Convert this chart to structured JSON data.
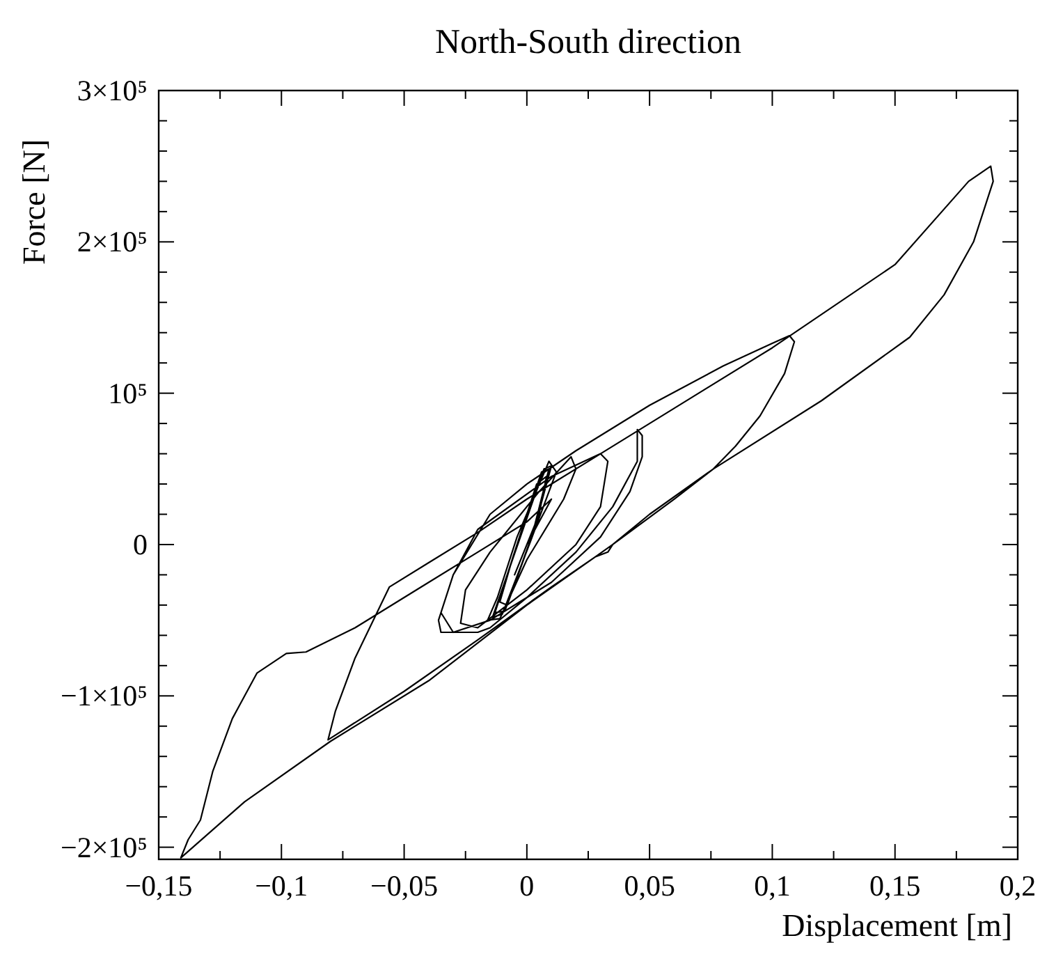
{
  "chart_data": {
    "type": "line",
    "title": "North-South direction",
    "xlabel": "Displacement [m]",
    "ylabel": "Force [N]",
    "xlim": [
      -0.15,
      0.2
    ],
    "ylim": [
      -208000,
      300000
    ],
    "xticks": [
      {
        "value": -0.15,
        "label": "−0,15"
      },
      {
        "value": -0.125,
        "label": null
      },
      {
        "value": -0.1,
        "label": "−0,1"
      },
      {
        "value": -0.075,
        "label": null
      },
      {
        "value": -0.05,
        "label": "−0,05"
      },
      {
        "value": -0.025,
        "label": null
      },
      {
        "value": 0,
        "label": "0"
      },
      {
        "value": 0.025,
        "label": null
      },
      {
        "value": 0.05,
        "label": "0,05"
      },
      {
        "value": 0.075,
        "label": null
      },
      {
        "value": 0.1,
        "label": "0,1"
      },
      {
        "value": 0.125,
        "label": null
      },
      {
        "value": 0.15,
        "label": "0,15"
      },
      {
        "value": 0.175,
        "label": null
      },
      {
        "value": 0.2,
        "label": "0,2"
      }
    ],
    "yticks": [
      {
        "value": -200000,
        "label": "−2×10⁵"
      },
      {
        "value": -180000,
        "label": null
      },
      {
        "value": -160000,
        "label": null
      },
      {
        "value": -140000,
        "label": null
      },
      {
        "value": -120000,
        "label": null
      },
      {
        "value": -100000,
        "label": "−1×10⁵"
      },
      {
        "value": -80000,
        "label": null
      },
      {
        "value": -60000,
        "label": null
      },
      {
        "value": -40000,
        "label": null
      },
      {
        "value": -20000,
        "label": null
      },
      {
        "value": 0,
        "label": "0"
      },
      {
        "value": 20000,
        "label": null
      },
      {
        "value": 40000,
        "label": null
      },
      {
        "value": 60000,
        "label": null
      },
      {
        "value": 80000,
        "label": null
      },
      {
        "value": 100000,
        "label": "10⁵"
      },
      {
        "value": 120000,
        "label": null
      },
      {
        "value": 140000,
        "label": null
      },
      {
        "value": 160000,
        "label": null
      },
      {
        "value": 180000,
        "label": null
      },
      {
        "value": 200000,
        "label": "2×10⁵"
      },
      {
        "value": 220000,
        "label": null
      },
      {
        "value": 240000,
        "label": null
      },
      {
        "value": 260000,
        "label": null
      },
      {
        "value": 280000,
        "label": null
      },
      {
        "value": 300000,
        "label": "3×10⁵"
      }
    ],
    "grid": false,
    "marker": "none",
    "line_style": "solid",
    "series": [
      {
        "color": "#000000",
        "x": [
          0,
          0.005,
          0.008,
          0.004,
          -0.006,
          -0.011,
          -0.008,
          0.002,
          0.009,
          0.006,
          -0.007,
          -0.013,
          -0.009,
          0.003,
          0.01,
          0.007,
          -0.008,
          -0.014,
          -0.01,
          0.001,
          0.012,
          0.009,
          -0.004,
          -0.012,
          -0.016,
          -0.011,
          0.0,
          0.015,
          0.02,
          0.018,
          0.005,
          -0.015,
          -0.025,
          -0.027,
          -0.02,
          0.0,
          0.02,
          0.03,
          0.033,
          0.03,
          0.01,
          -0.02,
          -0.03,
          -0.035,
          -0.03,
          -0.015,
          0.01,
          0.03,
          0.042,
          0.047,
          0.047,
          0.045,
          0.045,
          0.035,
          0.02,
          0.0,
          -0.015,
          -0.02,
          -0.035,
          -0.036,
          -0.03,
          -0.015,
          0.0,
          0.02,
          0.05,
          0.08,
          0.1,
          0.107,
          0.109,
          0.105,
          0.095,
          0.085,
          0.076,
          0.06,
          0.045,
          0.035,
          0.033,
          0.028,
          0.01,
          -0.02,
          -0.05,
          -0.081,
          -0.078,
          -0.07,
          -0.056,
          -0.04,
          -0.02,
          0.0,
          0.03,
          0.06,
          0.1,
          0.15,
          0.18,
          0.189,
          0.19,
          0.182,
          0.17,
          0.156,
          0.12,
          0.076,
          0.05,
          0.035,
          0.028,
          0.0,
          -0.04,
          -0.08,
          -0.115,
          -0.141,
          -0.138,
          -0.133,
          -0.128,
          -0.12,
          -0.11,
          -0.098,
          -0.09,
          -0.07,
          -0.04,
          -0.02,
          0.0,
          0.01,
          0.0,
          -0.005
        ],
        "values": [
          0,
          20000,
          45000,
          40000,
          -10000,
          -38000,
          -40000,
          5000,
          50000,
          48000,
          -15000,
          -45000,
          -44000,
          10000,
          52000,
          50000,
          -20000,
          -48000,
          -46000,
          0,
          48000,
          55000,
          5000,
          -35000,
          -50000,
          -49000,
          -10000,
          30000,
          50000,
          58000,
          35000,
          -5000,
          -30000,
          -52000,
          -55000,
          -30000,
          0,
          25000,
          55000,
          60000,
          45000,
          10000,
          -20000,
          -45000,
          -58000,
          -50000,
          -25000,
          5000,
          35000,
          58000,
          72000,
          76000,
          55000,
          25000,
          -5000,
          -35000,
          -55000,
          -58000,
          -58000,
          -50000,
          -20000,
          20000,
          40000,
          62000,
          92000,
          118000,
          133000,
          138000,
          134000,
          113000,
          85000,
          65000,
          50000,
          30000,
          12000,
          0,
          -5000,
          -8000,
          -28000,
          -63000,
          -97000,
          -129000,
          -110000,
          -75000,
          -28000,
          -12000,
          8000,
          30000,
          60000,
          90000,
          130000,
          185000,
          240000,
          250000,
          240000,
          200000,
          165000,
          137000,
          95000,
          50000,
          20000,
          0,
          -8000,
          -40000,
          -90000,
          -130000,
          -170000,
          -207000,
          -195000,
          -182000,
          -150000,
          -115000,
          -85000,
          -72000,
          -71000,
          -55000,
          -25000,
          -5000,
          15000,
          30000,
          0,
          -20000
        ]
      }
    ]
  }
}
